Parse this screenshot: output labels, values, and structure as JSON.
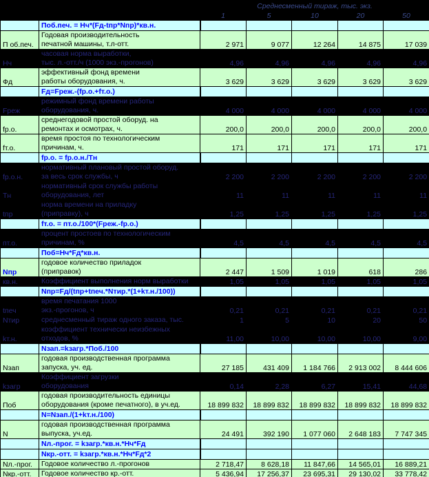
{
  "header": {
    "title": "Среднесменный тираж, тыс. экз.",
    "columns": [
      "1",
      "5",
      "10",
      "20",
      "50"
    ]
  },
  "colors": {
    "row_green": "#ccffcc",
    "row_cyan": "#ccffff",
    "row_dark_bg": "#000000",
    "dark_text": "#26267a",
    "formula_text": "#0000ff",
    "grid": "#000000"
  },
  "rows": [
    {
      "kind": "formula",
      "text": "Поб.печ. = Нч*(Fд-tпр*Nпр)*кв.н."
    },
    {
      "kind": "data",
      "theme": "green",
      "lines": 2,
      "label": "П об.печ.",
      "desc": "Годовая производительность\nпечатной машины, т.л-отт.",
      "values": [
        "2 971",
        "9 077",
        "12 264",
        "14 875",
        "17 039"
      ]
    },
    {
      "kind": "data",
      "theme": "dark",
      "lines": 2,
      "label": "Нч",
      "desc": "часовая норма выработки,\nтыс. л.-отт./ч (1000 экз.-прогонов)",
      "values": [
        "4,96",
        "4,96",
        "4,96",
        "4,96",
        "4,96"
      ]
    },
    {
      "kind": "data",
      "theme": "green",
      "lines": 2,
      "label": "Фд",
      "desc": "эффективный фонд времени\nработы оборудования, ч.",
      "values": [
        "3 629",
        "3 629",
        "3 629",
        "3 629",
        "3 629"
      ]
    },
    {
      "kind": "formula",
      "text": "Fд=Fреж.-(fр.о.+fт.о.)"
    },
    {
      "kind": "data",
      "theme": "dark",
      "lines": 2,
      "label": "Fреж",
      "desc": "режимный фонд времени работы\nоборудования, ч.",
      "values": [
        "4 000",
        "4 000",
        "4 000",
        "4 000",
        "4 000"
      ]
    },
    {
      "kind": "data",
      "theme": "green",
      "lines": 2,
      "label": "fр.о.",
      "desc": "среднегодовой простой оборуд. на\nремонтах и осмотрах, ч.",
      "values": [
        "200,0",
        "200,0",
        "200,0",
        "200,0",
        "200,0"
      ]
    },
    {
      "kind": "data",
      "theme": "green",
      "lines": 2,
      "label": "fт.о.",
      "desc": "время простоя по технологическим\nпричинам, ч.",
      "values": [
        "171",
        "171",
        "171",
        "171",
        "171"
      ]
    },
    {
      "kind": "formula",
      "text": "fр.о. = fр.о.н./Тн"
    },
    {
      "kind": "data",
      "theme": "dark",
      "lines": 2,
      "label": "fр.о.н.",
      "desc": "нормативный плановый простой оборуд.\nза весь срок службы, ч",
      "values": [
        "2 200",
        "2 200",
        "2 200",
        "2 200",
        "2 200"
      ]
    },
    {
      "kind": "data",
      "theme": "dark",
      "lines": 2,
      "label": "Тн",
      "desc": "нормативный срок службы работы\nоборудования, лет",
      "values": [
        "11",
        "11",
        "11",
        "11",
        "11"
      ]
    },
    {
      "kind": "data",
      "theme": "dark",
      "lines": 2,
      "label": "tпр",
      "desc": "норма времени на приладку\n(приправку), ч",
      "values": [
        "1,25",
        "1,25",
        "1,25",
        "1,25",
        "1,25"
      ]
    },
    {
      "kind": "formula",
      "text": "fт.о. = пт.о./100*(Fреж.-fр.о.)"
    },
    {
      "kind": "data",
      "theme": "dark",
      "lines": 2,
      "label": "пт.о.",
      "desc": "процент простоев по технологическим\nпричинам, %",
      "values": [
        "4,5",
        "4,5",
        "4,5",
        "4,5",
        "4,5"
      ]
    },
    {
      "kind": "formula",
      "text": "Поб=Нч*Fд*кв.н."
    },
    {
      "kind": "data",
      "theme": "green",
      "lines": 2,
      "label": "Nпр",
      "label_blue": true,
      "desc": "годовое количество приладок\n(приправок)",
      "values": [
        "2 447",
        "1 509",
        "1 019",
        "618",
        "286"
      ]
    },
    {
      "kind": "data",
      "theme": "dark",
      "lines": 1,
      "label": "кв.н.",
      "desc": "Коэффициент выполнения норм выработки",
      "values": [
        "1,05",
        "1,05",
        "1,05",
        "1,05",
        "1,05"
      ]
    },
    {
      "kind": "formula",
      "text": "Nпр=Fд/(tпр+tпеч.*Nтир.*(1+kт.н./100))"
    },
    {
      "kind": "data",
      "theme": "dark",
      "lines": 2,
      "label": "tпеч",
      "desc": "время печатания 1000\nэкз.-прогонов, ч",
      "values": [
        "0,21",
        "0,21",
        "0,21",
        "0,21",
        "0,21"
      ]
    },
    {
      "kind": "data",
      "theme": "dark",
      "lines": 1,
      "label": "Nтир",
      "desc": "среднесменный тираж одного заказа, тыс.",
      "values": [
        "1",
        "5",
        "10",
        "20",
        "50"
      ]
    },
    {
      "kind": "data",
      "theme": "dark",
      "lines": 2,
      "label": "kт.н.",
      "desc": "коэффициент технически неизбежных\nотходов, %",
      "values": [
        "11,00",
        "10,00",
        "10,00",
        "10,00",
        "9,00"
      ]
    },
    {
      "kind": "formula",
      "text": "Nзап.=kзагр.*Поб./100"
    },
    {
      "kind": "data",
      "theme": "green",
      "lines": 2,
      "label": "Nзап",
      "desc": "годовая производственная программа\nзапуска, уч. ед.",
      "values": [
        "27 185",
        "431 409",
        "1 184 766",
        "2 913 002",
        "8 444 606"
      ]
    },
    {
      "kind": "data",
      "theme": "dark",
      "lines": 2,
      "label": "kзагр",
      "desc": "Коэффициент загрузки\nоборудования",
      "values": [
        "0,14",
        "2,28",
        "6,27",
        "15,41",
        "44,68"
      ]
    },
    {
      "kind": "data",
      "theme": "green",
      "lines": 2,
      "label": "Поб",
      "desc": "годовая производительность единицы\nоборудования (кроме печатного), в уч.ед.",
      "values": [
        "18 899 832",
        "18 899 832",
        "18 899 832",
        "18 899 832",
        "18 899 832"
      ]
    },
    {
      "kind": "formula",
      "text": "N=Nзап./(1+kт.н./100)"
    },
    {
      "kind": "data",
      "theme": "green",
      "lines": 2,
      "label": "N",
      "desc": "годовая производственная программа\nвыпуска, уч.ед.",
      "values": [
        "24 491",
        "392 190",
        "1 077 060",
        "2 648 183",
        "7 747 345"
      ]
    },
    {
      "kind": "formula",
      "text": "Nл.-прог. = kзагр.*кв.н.*Нч*Fд"
    },
    {
      "kind": "formula",
      "text": "Nкр.-отт. = kзагр.*кв.н.*Нч*Fд*2"
    },
    {
      "kind": "data",
      "theme": "green",
      "lines": 1,
      "label": "Nл.-прог.",
      "desc": "Годовое количество л.-прогонов",
      "values": [
        "2 718,47",
        "8 628,18",
        "11 847,66",
        "14 565,01",
        "16 889,21"
      ]
    },
    {
      "kind": "data",
      "theme": "green",
      "lines": 1,
      "label": "Nкр.-отт.",
      "desc": "Годовое количество кр.-отт.",
      "values": [
        "5 436,94",
        "17 256,37",
        "23 695,31",
        "29 130,02",
        "33 778,42"
      ]
    }
  ]
}
